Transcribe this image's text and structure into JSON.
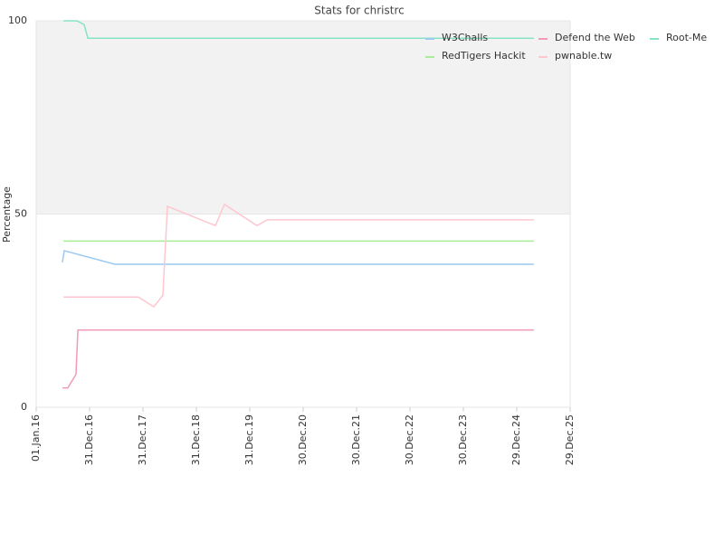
{
  "chart_data": {
    "type": "line",
    "title": "Stats for christrc",
    "y_label": "Percentage",
    "ylim": [
      0,
      100
    ],
    "yticks": [
      0,
      50,
      100
    ],
    "xlim": [
      "2016-01-01",
      "2025-12-29"
    ],
    "xticks": [
      {
        "value": "2016-01-01",
        "label": "01.Jan.16"
      },
      {
        "value": "2016-12-31",
        "label": "31.Dec.16"
      },
      {
        "value": "2017-12-31",
        "label": "31.Dec.17"
      },
      {
        "value": "2018-12-31",
        "label": "31.Dec.18"
      },
      {
        "value": "2019-12-31",
        "label": "31.Dec.19"
      },
      {
        "value": "2020-12-30",
        "label": "30.Dec.20"
      },
      {
        "value": "2021-12-30",
        "label": "30.Dec.21"
      },
      {
        "value": "2022-12-30",
        "label": "30.Dec.22"
      },
      {
        "value": "2023-12-30",
        "label": "30.Dec.23"
      },
      {
        "value": "2024-12-29",
        "label": "29.Dec.24"
      },
      {
        "value": "2025-12-29",
        "label": "29.Dec.25"
      }
    ],
    "plot_band": {
      "from": 50,
      "to": 100,
      "color": "#f2f2f2"
    },
    "legend": "top-right",
    "series": [
      {
        "name": "W3Challs",
        "color": "#9cc9f2",
        "x": [
          "2016-06-28",
          "2016-07-11",
          "2017-06-22",
          "2025-04-25"
        ],
        "values": [
          37.5,
          40.5,
          37,
          37
        ]
      },
      {
        "name": "Defend the Web",
        "color": "#f497b8",
        "x": [
          "2016-06-28",
          "2016-08-04",
          "2016-09-29",
          "2016-10-12",
          "2025-04-25"
        ],
        "values": [
          5,
          5,
          8.5,
          20,
          20
        ]
      },
      {
        "name": "Root-Me",
        "color": "#86e3c8",
        "x": [
          "2016-07-05",
          "2016-10-05",
          "2016-11-24",
          "2016-12-19",
          "2025-04-25"
        ],
        "values": [
          100,
          100,
          99,
          95.5,
          95.5
        ]
      },
      {
        "name": "RedTigers Hackit",
        "color": "#a8eb98",
        "x": [
          "2016-07-05",
          "2025-04-25"
        ],
        "values": [
          43,
          43
        ]
      },
      {
        "name": "pwnable.tw",
        "color": "#ffc6d0",
        "x": [
          "2016-07-05",
          "2017-11-30",
          "2018-03-15",
          "2018-05-16",
          "2018-06-16",
          "2019-05-10",
          "2019-07-11",
          "2020-02-18",
          "2020-04-27",
          "2025-04-25"
        ],
        "values": [
          28.5,
          28.5,
          26,
          29,
          52,
          47,
          52.5,
          47,
          48.5,
          48.5
        ]
      }
    ]
  }
}
